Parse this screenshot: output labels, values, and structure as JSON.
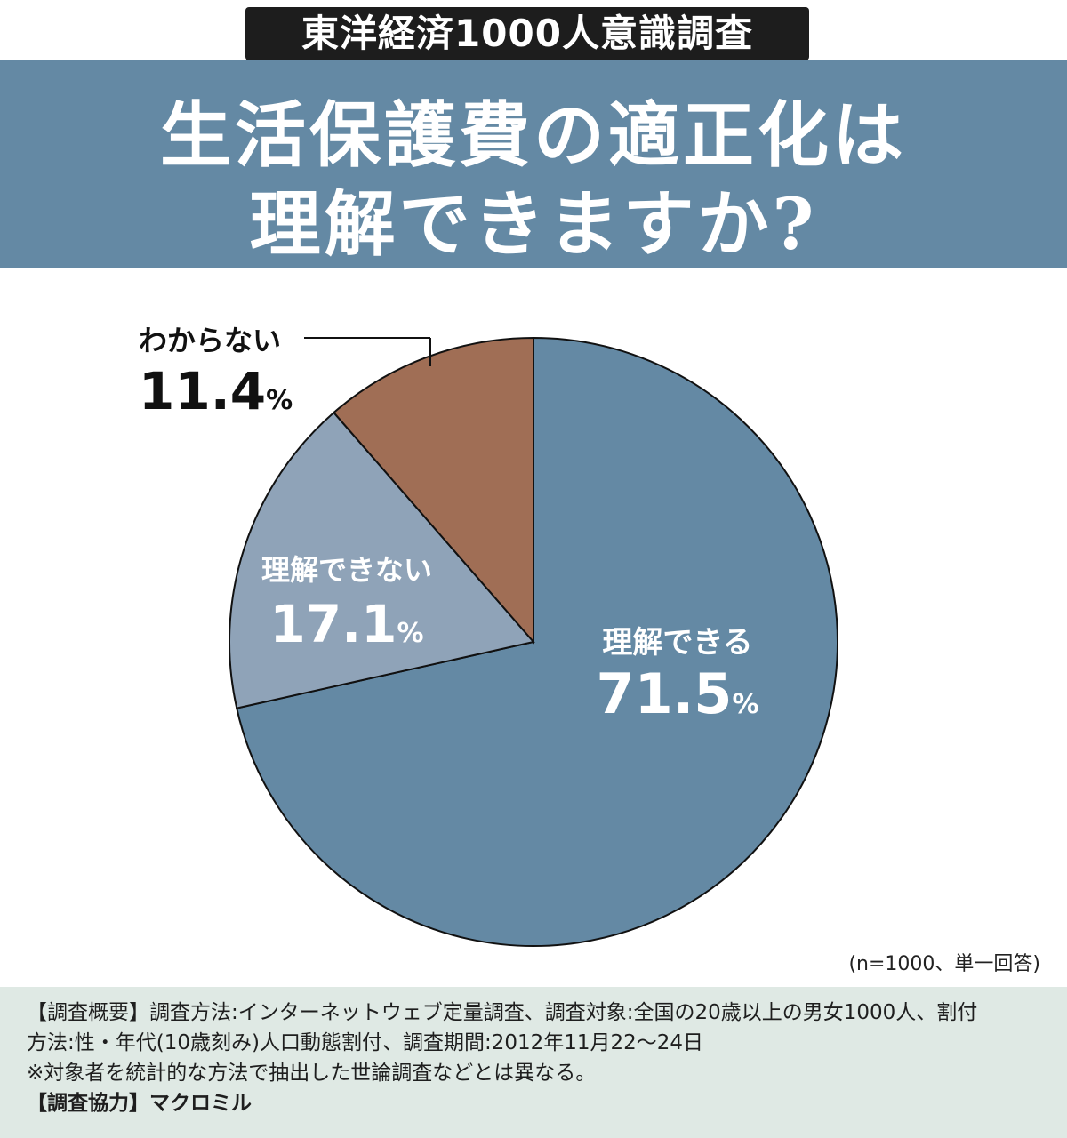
{
  "survey_badge": "東洋経済1000人意識調査",
  "title": {
    "line1": "生活保護費の適正化は",
    "line2": "理解できますか?"
  },
  "chart_data": {
    "type": "pie",
    "unit": "%",
    "start": "top, clockwise",
    "slices": [
      {
        "label": "理解できる",
        "value": 71.5,
        "value_text": "71.5",
        "color": "#6489a4"
      },
      {
        "label": "理解できない",
        "value": 17.1,
        "value_text": "17.1",
        "color": "#8fa3b8"
      },
      {
        "label": "わからない",
        "value": 11.4,
        "value_text": "11.4",
        "color": "#a06e55"
      }
    ]
  },
  "note": "(n=1000、単一回答)",
  "footer": {
    "line1": "【調査概要】調査方法:インターネットウェブ定量調査、調査対象:全国の20歳以上の男女1000人、割付",
    "line2": "方法:性・年代(10歳刻み)人口動態割付、調査期間:2012年11月22〜24日",
    "line3": "※対象者を統計的な方法で抽出した世論調査などとは異なる。",
    "line4_label": "【調査協力】",
    "line4_value": "マクロミル"
  }
}
